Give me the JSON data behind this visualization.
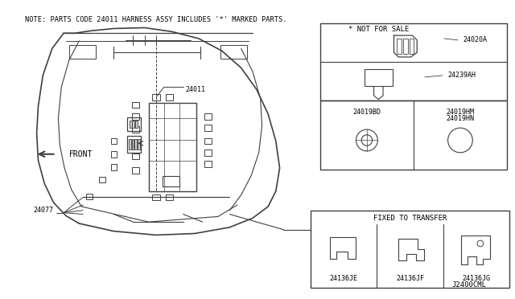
{
  "bg_color": "#ffffff",
  "line_color": "#404040",
  "title_note": "NOTE: PARTS CODE 24011 HARNESS ASSY INCLUDES '*' MARKED PARTS.",
  "footer_code": "J2400CML",
  "note_text": "* NOT FOR SALE",
  "fixed_text": "FIXED TO TRANSFER"
}
